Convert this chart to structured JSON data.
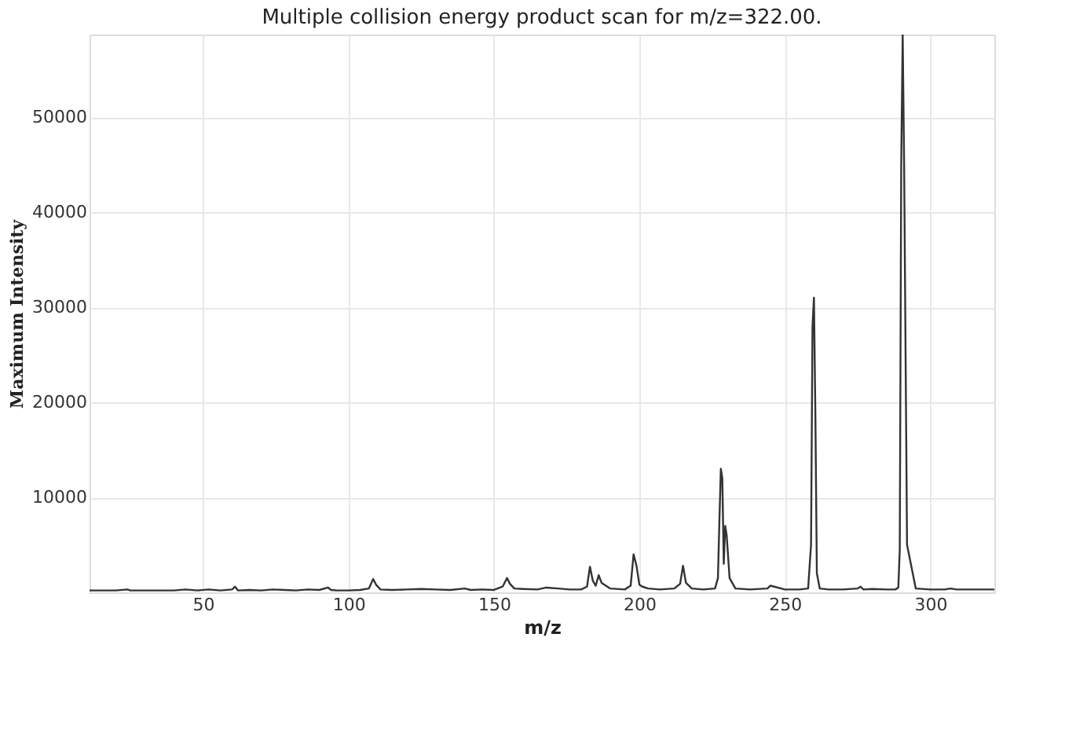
{
  "chart_data": {
    "type": "line",
    "title": "Multiple collision energy product scan for m/z=322.00.",
    "xlabel": "m/z",
    "ylabel": "Maximum Intensity",
    "x": [
      11,
      20,
      24,
      25,
      30,
      40,
      44,
      48,
      52,
      56,
      60,
      61,
      62,
      66,
      70,
      74,
      78,
      82,
      86,
      90,
      93,
      94,
      96,
      100,
      104,
      107,
      108.5,
      109.5,
      111,
      115,
      120,
      125,
      130,
      135,
      140,
      142,
      146,
      150,
      153,
      154.5,
      155.5,
      157,
      160,
      165,
      168,
      172,
      176,
      180,
      182,
      183,
      184,
      185,
      186,
      187,
      190,
      195,
      197,
      198,
      199,
      200,
      201,
      203,
      207,
      212,
      214,
      215,
      216,
      218,
      222,
      226,
      227,
      227.5,
      228,
      228.5,
      229,
      229.5,
      230,
      231,
      233,
      238,
      244,
      245,
      250,
      255,
      258,
      259,
      259.5,
      260,
      260.5,
      261,
      262,
      265,
      270,
      275,
      276,
      277,
      280,
      285,
      288,
      289,
      289.5,
      290,
      290.5,
      291,
      292,
      295,
      300,
      305,
      307,
      309,
      315,
      322
    ],
    "series": [
      {
        "color": "#333333",
        "values": [
          200,
          200,
          300,
          200,
          200,
          200,
          300,
          200,
          300,
          200,
          300,
          600,
          200,
          250,
          200,
          300,
          250,
          200,
          300,
          250,
          500,
          250,
          200,
          200,
          250,
          400,
          1400,
          800,
          300,
          250,
          300,
          350,
          300,
          250,
          400,
          250,
          300,
          250,
          600,
          1500,
          900,
          400,
          350,
          300,
          500,
          400,
          300,
          300,
          600,
          2700,
          1200,
          700,
          1800,
          1000,
          400,
          300,
          700,
          4000,
          2800,
          800,
          600,
          400,
          300,
          400,
          900,
          2800,
          1000,
          400,
          300,
          400,
          1500,
          7500,
          13000,
          12000,
          3000,
          7000,
          6000,
          1500,
          400,
          300,
          400,
          700,
          300,
          300,
          400,
          5000,
          28000,
          31000,
          18500,
          2000,
          400,
          300,
          300,
          400,
          600,
          300,
          350,
          300,
          300,
          500,
          4500,
          45000,
          58700,
          45000,
          5000,
          400,
          300,
          300,
          400,
          300,
          300,
          300
        ]
      }
    ],
    "xlim": [
      11,
      322
    ],
    "ylim": [
      0,
      58700
    ],
    "xticks": [
      50,
      100,
      150,
      200,
      250,
      300
    ],
    "yticks": [
      10000,
      20000,
      30000,
      40000,
      50000
    ],
    "grid": true
  }
}
